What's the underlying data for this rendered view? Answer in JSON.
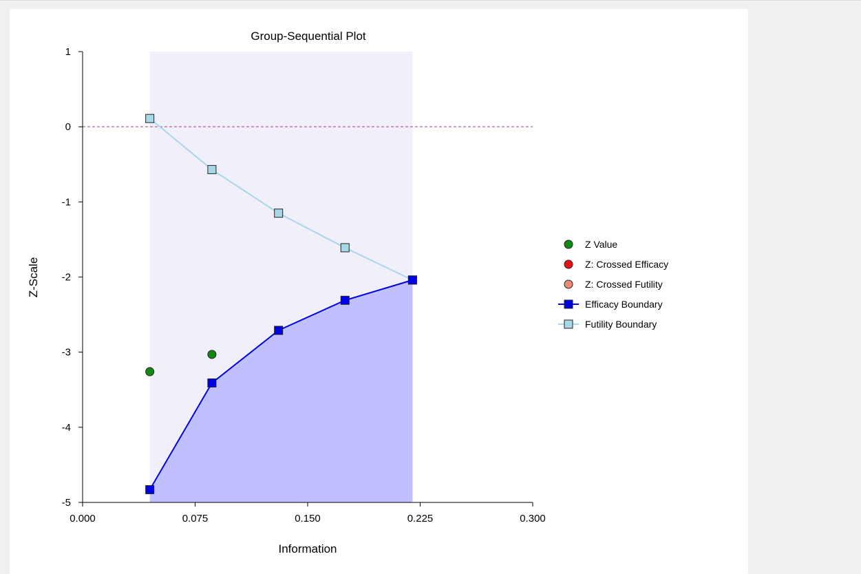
{
  "chart_data": {
    "type": "line",
    "title": "Group-Sequential Plot",
    "xlabel": "Information",
    "ylabel": "Z-Scale",
    "xlim": [
      0,
      0.3
    ],
    "ylim": [
      -5,
      1
    ],
    "x_ticks": [
      "0.000",
      "0.075",
      "0.150",
      "0.225",
      "0.300"
    ],
    "y_ticks": [
      "1",
      "0",
      "-1",
      "-2",
      "-3",
      "-4",
      "-5"
    ],
    "x_tick_values": [
      0,
      0.075,
      0.15,
      0.225,
      0.3
    ],
    "y_tick_values": [
      1,
      0,
      -1,
      -2,
      -3,
      -4,
      -5
    ],
    "reference_line_y": 0,
    "legend_position": "right",
    "series": [
      {
        "name": "Z Value",
        "kind": "points",
        "marker": "circle",
        "color": "#118a11",
        "x": [
          0.0448,
          0.0862
        ],
        "y": [
          -3.26,
          -3.03
        ]
      },
      {
        "name": "Z: Crossed Efficacy",
        "kind": "points",
        "marker": "circle",
        "color": "#e81010",
        "x": [],
        "y": []
      },
      {
        "name": "Z: Crossed Futility",
        "kind": "points",
        "marker": "circle",
        "color": "#ec8a78",
        "x": [],
        "y": []
      },
      {
        "name": "Efficacy Boundary",
        "kind": "line",
        "marker": "square",
        "color": "#0000e6",
        "fill": "#c0c0ff",
        "x": [
          0.0448,
          0.0862,
          0.1306,
          0.1749,
          0.2199
        ],
        "y": [
          -4.83,
          -3.41,
          -2.71,
          -2.31,
          -2.04
        ]
      },
      {
        "name": "Futility Boundary",
        "kind": "line",
        "marker": "square",
        "color": "#a8d8e8",
        "fill": "#f0effa",
        "x": [
          0.0448,
          0.0862,
          0.1306,
          0.1749,
          0.2199
        ],
        "y": [
          0.11,
          -0.57,
          -1.15,
          -1.61,
          -2.04
        ]
      }
    ]
  }
}
